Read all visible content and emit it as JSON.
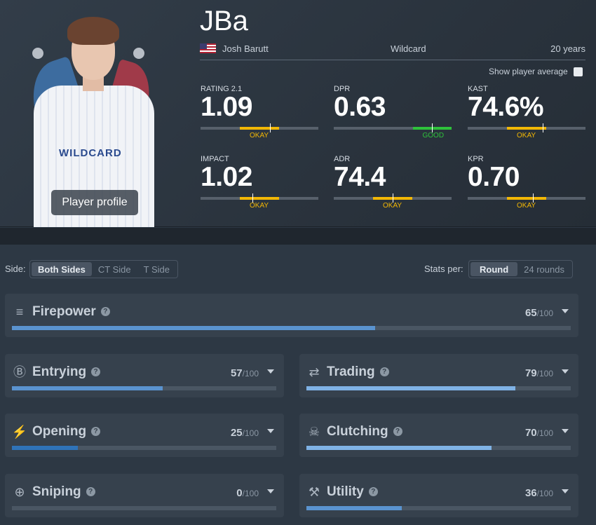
{
  "player": {
    "nickname": "JBa",
    "real_name": "Josh Barutt",
    "team": "Wildcard",
    "age": "20 years",
    "flag_icon": "us-flag-icon",
    "profile_button": "Player profile",
    "shirt_text": "WILDCARD"
  },
  "show_avg_label": "Show player average",
  "stats": [
    {
      "label": "RATING 2.1",
      "value": "1.09",
      "rating": "OKAY",
      "color": "#f2b705"
    },
    {
      "label": "DPR",
      "value": "0.63",
      "rating": "GOOD",
      "color": "#2ec23b"
    },
    {
      "label": "KAST",
      "value": "74.6%",
      "rating": "OKAY",
      "color": "#f2b705"
    },
    {
      "label": "IMPACT",
      "value": "1.02",
      "rating": "OKAY",
      "color": "#f2b705"
    },
    {
      "label": "ADR",
      "value": "74.4",
      "rating": "OKAY",
      "color": "#f2b705"
    },
    {
      "label": "KPR",
      "value": "0.70",
      "rating": "OKAY",
      "color": "#f2b705"
    }
  ],
  "filters": {
    "side_label": "Side:",
    "side_options": [
      "Both Sides",
      "CT Side",
      "T Side"
    ],
    "side_selected": "Both Sides",
    "stats_per_label": "Stats per:",
    "stats_per_options": [
      "Round",
      "24 rounds"
    ],
    "stats_per_selected": "Round"
  },
  "categories": [
    {
      "name": "Firepower",
      "score": "65",
      "denominator": "/100",
      "fraction": 0.65,
      "icon": "firepower-icon",
      "bar_color": "#5a93cf"
    },
    {
      "name": "Entrying",
      "score": "57",
      "denominator": "/100",
      "fraction": 0.57,
      "icon": "entrying-icon",
      "bar_color": "#5a93cf"
    },
    {
      "name": "Trading",
      "score": "79",
      "denominator": "/100",
      "fraction": 0.79,
      "icon": "trading-icon",
      "bar_color": "#7fb2e5"
    },
    {
      "name": "Opening",
      "score": "25",
      "denominator": "/100",
      "fraction": 0.25,
      "icon": "opening-icon",
      "bar_color": "#2f73b8"
    },
    {
      "name": "Clutching",
      "score": "70",
      "denominator": "/100",
      "fraction": 0.7,
      "icon": "clutching-icon",
      "bar_color": "#7fb2e5"
    },
    {
      "name": "Sniping",
      "score": "0",
      "denominator": "/100",
      "fraction": 0.0,
      "icon": "sniping-icon",
      "bar_color": "#5a93cf"
    },
    {
      "name": "Utility",
      "score": "36",
      "denominator": "/100",
      "fraction": 0.36,
      "icon": "utility-icon",
      "bar_color": "#5a93cf"
    }
  ]
}
